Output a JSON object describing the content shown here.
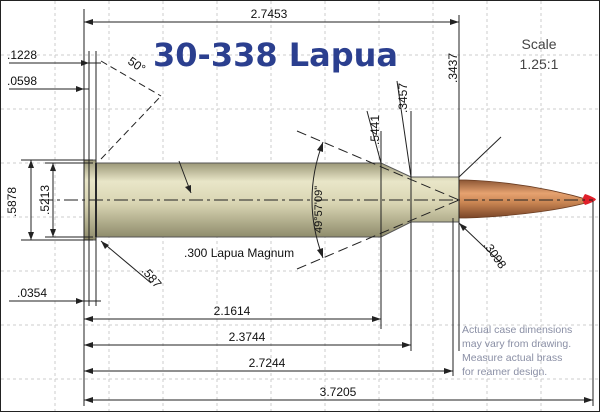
{
  "title": "30-338 Lapua",
  "scale": {
    "label": "Scale",
    "value": "1.25:1"
  },
  "case_name": ".300 Lapua Magnum",
  "note_lines": [
    "Actual case dimensions",
    "may vary from drawing.",
    "Measure actual brass",
    "for reamer design."
  ],
  "dimensions": {
    "overall_case_top": "2.7453",
    "rim_thickness": ".1228",
    "extractor_groove": ".0598",
    "rim_bevel": "50°",
    "shoulder_dia": ".5441",
    "neck_dia_outer": ".3457",
    "neck_dia": ".3437",
    "base_dia": ".5878",
    "body_dia": ".5213",
    "shoulder_angle": "49°57'09\"",
    "bullet_dia": ".3098",
    "rim_chamfer": ".587",
    "rim_small": ".0354",
    "to_shoulder": "2.1614",
    "to_neck": "2.3744",
    "case_length": "2.7244",
    "overall_length": "3.7205"
  },
  "colors": {
    "title": "#2b3f8f",
    "case_body": "#d6d2b0",
    "bullet": "#c4824e",
    "bullet_tip": "#e0202a",
    "grid": "#c8c8c8",
    "note": "#8a8fa5"
  }
}
